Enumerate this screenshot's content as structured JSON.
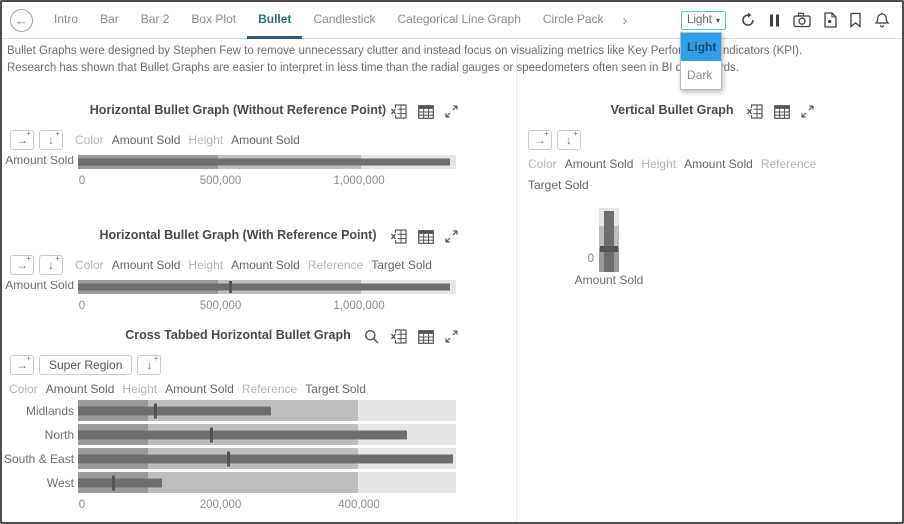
{
  "toolbar": {
    "back_glyph": "←",
    "tabs": [
      {
        "label": "Intro",
        "active": false
      },
      {
        "label": "Bar",
        "active": false
      },
      {
        "label": "Bar 2",
        "active": false
      },
      {
        "label": "Box Plot",
        "active": false
      },
      {
        "label": "Bullet",
        "active": true
      },
      {
        "label": "Candlestick",
        "active": false
      },
      {
        "label": "Categorical Line Graph",
        "active": false
      },
      {
        "label": "Circle Pack",
        "active": false
      }
    ],
    "more_tabs_chevron": "›",
    "theme_dropdown": {
      "value": "Light",
      "caret": "▾"
    },
    "action_icons": [
      "refresh",
      "pause",
      "camera",
      "export-pdf",
      "bookmark",
      "notifications"
    ]
  },
  "theme_menu": {
    "open": true,
    "items": [
      {
        "label": "Light",
        "selected": true
      },
      {
        "label": "Dark",
        "selected": false
      }
    ]
  },
  "description": {
    "line1": "Bullet Graphs were designed by Stephen Few to remove unnecessary clutter and instead focus on visualizing metrics like Key Performance Indicators (KPI).",
    "line2": "Research has shown that Bullet Graphs are easier to interpret in less time than the radial gauges or speedometers often seen in BI dashboards."
  },
  "colors": {
    "bands": [
      "#9a9a9a",
      "#bdbdbd",
      "#e6e6e6"
    ],
    "measure": "#6e6e6e",
    "reference": "#545454",
    "accent_teal": "#58c6cb",
    "tab_active": "#2a7080",
    "menu_highlight": "#2f9fe8"
  },
  "chart_data": [
    {
      "id": "h_no_ref",
      "type": "bullet-horizontal",
      "title": "Horizontal Bullet Graph (Without Reference Point)",
      "panel_icons": [
        "excel-export",
        "data-table",
        "maximize"
      ],
      "tools": [
        "add-right",
        "add-down"
      ],
      "shelf": [
        {
          "label": "Color",
          "muted": true
        },
        {
          "label": "Amount Sold",
          "muted": false
        },
        {
          "label": "Height",
          "muted": true
        },
        {
          "label": "Amount Sold",
          "muted": false
        }
      ],
      "clip_labels": true,
      "axis": {
        "max": 1350000,
        "ticks": [
          {
            "value": 0,
            "label": "0"
          },
          {
            "value": 500000,
            "label": "500,000"
          },
          {
            "value": 1000000,
            "label": "1,000,000"
          }
        ]
      },
      "bands": [
        {
          "end": 500000
        },
        {
          "end": 1010000
        },
        {
          "end": 1350000
        }
      ],
      "rows": [
        {
          "label": "Amount Sold",
          "measure": 1330000,
          "reference": null
        }
      ]
    },
    {
      "id": "h_with_ref",
      "type": "bullet-horizontal",
      "title": "Horizontal Bullet Graph (With Reference Point)",
      "panel_icons": [
        "excel-export",
        "data-table",
        "maximize"
      ],
      "tools": [
        "add-right",
        "add-down"
      ],
      "shelf": [
        {
          "label": "Color",
          "muted": true
        },
        {
          "label": "Amount Sold",
          "muted": false
        },
        {
          "label": "Height",
          "muted": true
        },
        {
          "label": "Amount Sold",
          "muted": false
        },
        {
          "label": "Reference",
          "muted": true
        },
        {
          "label": "Target Sold",
          "muted": false
        }
      ],
      "clip_labels": true,
      "axis": {
        "max": 1350000,
        "ticks": [
          {
            "value": 0,
            "label": "0"
          },
          {
            "value": 500000,
            "label": "500,000"
          },
          {
            "value": 1000000,
            "label": "1,000,000"
          }
        ]
      },
      "bands": [
        {
          "end": 500000
        },
        {
          "end": 1010000
        },
        {
          "end": 1350000
        }
      ],
      "rows": [
        {
          "label": "Amount Sold",
          "measure": 1330000,
          "reference": 545000
        }
      ]
    },
    {
      "id": "vertical",
      "type": "bullet-vertical",
      "title": "Vertical Bullet Graph",
      "panel_icons": [
        "excel-export",
        "data-table",
        "maximize"
      ],
      "tools": [
        "add-right",
        "add-down"
      ],
      "shelf_lines": [
        [
          {
            "label": "Color",
            "muted": true
          },
          {
            "label": "Amount Sold",
            "muted": false
          },
          {
            "label": "Height",
            "muted": true
          },
          {
            "label": "Amount Sold",
            "muted": false
          },
          {
            "label": "Reference",
            "muted": true
          }
        ],
        [
          {
            "label": "Target Sold",
            "muted": false
          }
        ]
      ],
      "axis": {
        "zero_label": "0"
      },
      "category_label": "Amount Sold",
      "bands_frac": [
        0.37,
        0.35,
        0.28
      ],
      "measure_frac": 0.96,
      "reference_frac": 0.31
    },
    {
      "id": "crosstab",
      "type": "bullet-horizontal",
      "title": "Cross Tabbed Horizontal Bullet Graph",
      "panel_icons": [
        "search",
        "excel-export",
        "data-table",
        "maximize"
      ],
      "tools": [
        "add-right",
        "grouping-chip",
        "add-down"
      ],
      "grouping_chip": "Super Region",
      "shelf": [
        {
          "label": "Color",
          "muted": true
        },
        {
          "label": "Amount Sold",
          "muted": false
        },
        {
          "label": "Height",
          "muted": true
        },
        {
          "label": "Amount Sold",
          "muted": false
        },
        {
          "label": "Reference",
          "muted": true
        },
        {
          "label": "Target Sold",
          "muted": false
        }
      ],
      "clip_labels": false,
      "axis": {
        "max": 540000,
        "ticks": [
          {
            "value": 0,
            "label": "0"
          },
          {
            "value": 200000,
            "label": "200,000"
          },
          {
            "value": 400000,
            "label": "400,000"
          }
        ]
      },
      "bands": [
        {
          "end": 100000
        },
        {
          "end": 400000
        },
        {
          "end": 540000
        }
      ],
      "rows": [
        {
          "label": "Midlands",
          "measure": 275000,
          "reference": 110000
        },
        {
          "label": "North",
          "measure": 470000,
          "reference": 190000
        },
        {
          "label": "South & East",
          "measure": 535000,
          "reference": 215000
        },
        {
          "label": "West",
          "measure": 120000,
          "reference": 50000
        }
      ]
    }
  ]
}
